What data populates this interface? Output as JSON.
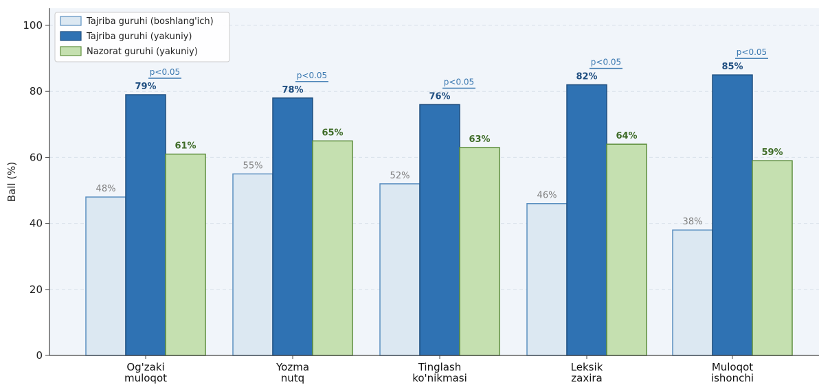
{
  "chart_data": {
    "type": "bar",
    "categories": [
      [
        "Og'zaki",
        "muloqot"
      ],
      [
        "Yozma",
        "nutq"
      ],
      [
        "Tinglash",
        "ko'nikmasi"
      ],
      [
        "Leksik",
        "zaxira"
      ],
      [
        "Muloqot",
        "ishonchi"
      ]
    ],
    "series": [
      {
        "name": "Tajriba guruhi (boshlang'ich)",
        "values": [
          48,
          55,
          52,
          46,
          38
        ],
        "labels": [
          "48%",
          "55%",
          "52%",
          "46%",
          "38%"
        ]
      },
      {
        "name": "Tajriba guruhi (yakuniy)",
        "values": [
          79,
          78,
          76,
          82,
          85
        ],
        "labels": [
          "79%",
          "78%",
          "76%",
          "82%",
          "85%"
        ]
      },
      {
        "name": "Nazorat guruhi (yakuniy)",
        "values": [
          61,
          65,
          63,
          64,
          59
        ],
        "labels": [
          "61%",
          "65%",
          "63%",
          "64%",
          "59%"
        ]
      }
    ],
    "annotations": [
      "p<0.05",
      "p<0.05",
      "p<0.05",
      "p<0.05",
      "p<0.05"
    ],
    "ylabel": "Ball (%)",
    "xlabel": "",
    "ylim": [
      0,
      100
    ],
    "yticks": [
      "0",
      "20",
      "40",
      "60",
      "80",
      "100"
    ],
    "grid": true,
    "legend_position": "top-left"
  },
  "colors": {
    "plot_bg": "#f1f5fa",
    "grid": "#d9e1ea",
    "axis": "#444444",
    "series_fill": [
      "#dce8f2",
      "#2f72b3",
      "#c5e0b0"
    ],
    "series_stroke": [
      "#5a8fc0",
      "#1f4f80",
      "#5f8f3e"
    ],
    "label_colors": [
      "#808080",
      "#1f4e80",
      "#3e6b27"
    ],
    "pval": "#3a78b0"
  }
}
